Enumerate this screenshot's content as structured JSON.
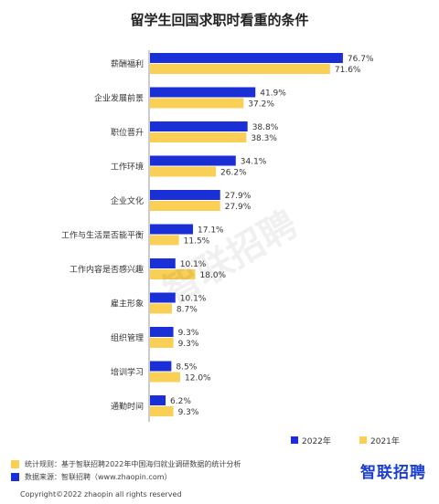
{
  "chart_data": {
    "type": "bar",
    "orientation": "horizontal",
    "title": "留学生回国求职时看重的条件",
    "categories": [
      "薪酬福利",
      "企业发展前景",
      "职位晋升",
      "工作环境",
      "企业文化",
      "工作与生活是否能平衡",
      "工作内容是否感兴趣",
      "雇主形象",
      "组织管理",
      "培训学习",
      "通勤时间"
    ],
    "series": [
      {
        "name": "2022年",
        "color": "#1a2fd6",
        "values": [
          76.7,
          41.9,
          38.8,
          34.1,
          27.9,
          17.1,
          10.1,
          10.1,
          9.3,
          8.5,
          6.2
        ],
        "labels": [
          "76.7%",
          "41.9%",
          "38.8%",
          "34.1%",
          "27.9%",
          "17.1%",
          "10.1%",
          "10.1%",
          "9.3%",
          "8.5%",
          "6.2%"
        ]
      },
      {
        "name": "2021年",
        "color": "#f9cf56",
        "values": [
          71.6,
          37.2,
          38.3,
          26.2,
          27.9,
          11.5,
          18.0,
          8.7,
          9.3,
          12.0,
          9.3
        ],
        "labels": [
          "71.6%",
          "37.2%",
          "38.3%",
          "26.2%",
          "27.9%",
          "11.5%",
          "18.0%",
          "8.7%",
          "9.3%",
          "12.0%",
          "9.3%"
        ]
      }
    ],
    "xlim": [
      0,
      80
    ],
    "grid": false,
    "legend": "bottom-right"
  },
  "footer": {
    "note1": "统计规则：基于智联招聘2022年中国海归就业调研数据的统计分析",
    "note2": "数据来源：智联招聘（www.zhaopin.com）",
    "brand": "智联招聘",
    "copyright": "Copyright©2022 zhaopin all rights reserved",
    "watermark": "智联招聘",
    "note1_color": "#f9cf56",
    "note2_color": "#1a2fd6"
  }
}
